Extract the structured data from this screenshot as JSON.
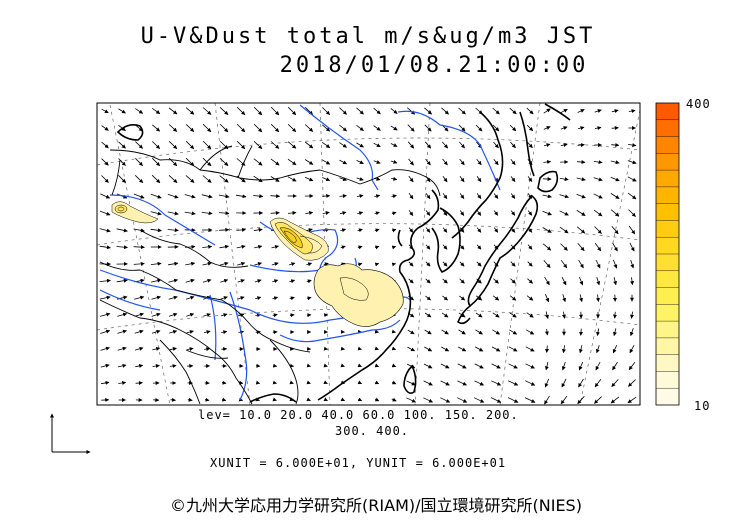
{
  "title": {
    "line1": "U-V&Dust total m/s&ug/m3 JST",
    "line2": "2018/01/08.21:00:00"
  },
  "levels": {
    "line1": "lev= 10.0 20.0 40.0 60.0 100. 150. 200.",
    "line2": "300. 400."
  },
  "units": "XUNIT = 6.000E+01, YUNIT = 6.000E+01",
  "colorbar": {
    "max_label": "400",
    "min_label": "10",
    "colors": [
      "#ff5a00",
      "#ff6f00",
      "#ff8400",
      "#ff9800",
      "#ffa800",
      "#ffb400",
      "#ffc000",
      "#ffcc10",
      "#ffd820",
      "#ffe030",
      "#ffe840",
      "#ffee50",
      "#fff266",
      "#fff488",
      "#fff6a6",
      "#fff8c4",
      "#fffad8",
      "#fffbe6"
    ]
  },
  "credit": "©九州大学応用力学研究所(RIAM)/国立環境研究所(NIES)",
  "colors": {
    "coast": "#000000",
    "river": "#2255ee",
    "dust_light": "#fff2b0",
    "dust_mid": "#ffe566"
  }
}
